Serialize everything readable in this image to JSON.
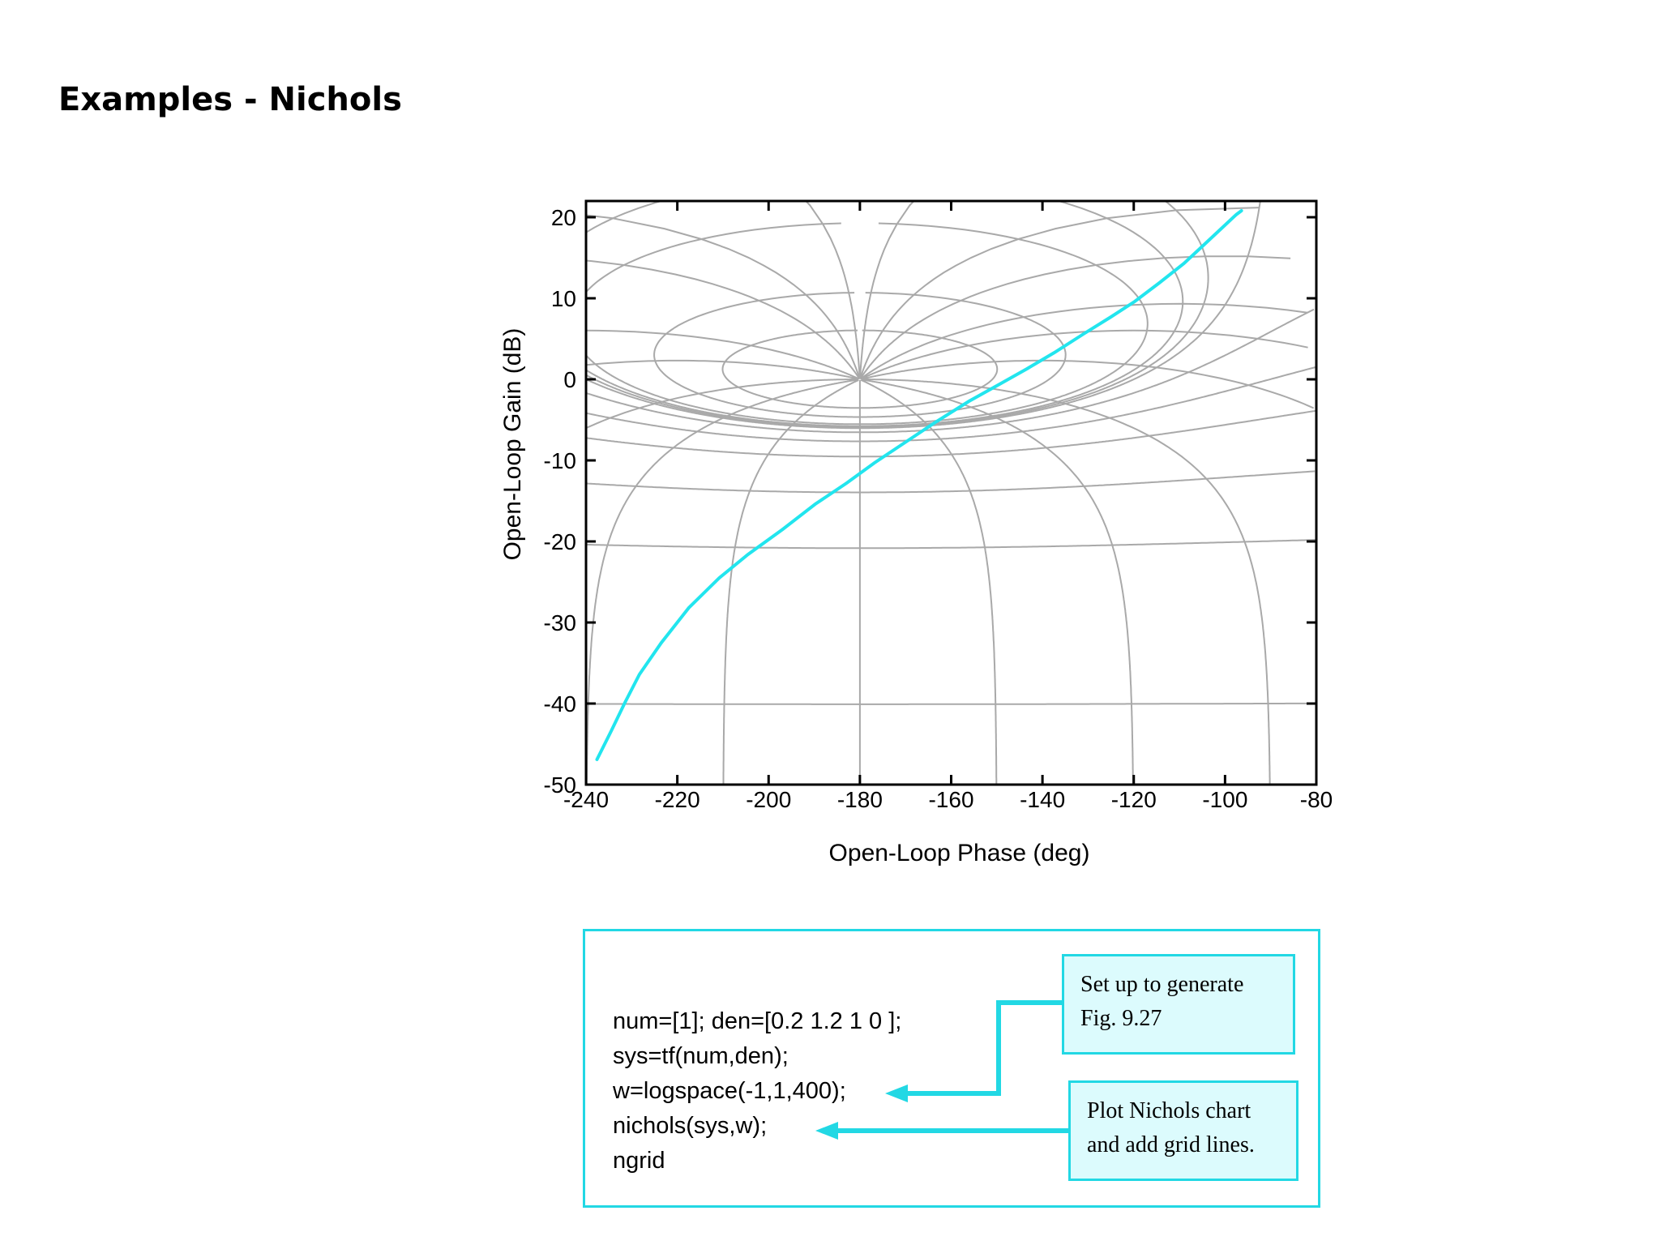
{
  "slide": {
    "title": "Examples - Nichols"
  },
  "chart_data": {
    "type": "line",
    "title": "",
    "xlabel": "Open-Loop Phase (deg)",
    "ylabel": "Open-Loop Gain (dB)",
    "xlim": [
      -240,
      -80
    ],
    "ylim": [
      -50,
      22
    ],
    "xticks": [
      -240,
      -220,
      -200,
      -180,
      -160,
      -140,
      -120,
      -100,
      -80
    ],
    "yticks": [
      -50,
      -40,
      -30,
      -20,
      -10,
      0,
      10,
      20
    ],
    "xtick_labels": [
      "-240",
      "-220",
      "-200",
      "-180",
      "-160",
      "-140",
      "-120",
      "-100",
      "-80"
    ],
    "ytick_labels": [
      "-50",
      "-40",
      "-30",
      "-20",
      "-10",
      "0",
      "10",
      "20"
    ],
    "grid": "nichols",
    "series": [
      {
        "color": "#22e5ee",
        "x": [
          -237.6,
          -234.5,
          -231.5,
          -228.3,
          -223.5,
          -217.5,
          -210.8,
          -204.5,
          -196.9,
          -189.8,
          -182.9,
          -176.8,
          -170.4,
          -163.2,
          -156.1,
          -149.4,
          -143.4,
          -137.4,
          -131.0,
          -125.0,
          -119.8,
          -114.4,
          -109.0,
          -104.8,
          -101.0,
          -97.6,
          -96.4
        ],
        "y": [
          -46.9,
          -43.4,
          -39.9,
          -36.4,
          -32.5,
          -28.2,
          -24.5,
          -21.6,
          -18.5,
          -15.4,
          -12.8,
          -10.3,
          -7.9,
          -5.2,
          -2.7,
          -0.6,
          1.3,
          3.3,
          5.6,
          7.7,
          9.6,
          11.9,
          14.3,
          16.5,
          18.5,
          20.3,
          20.8
        ]
      }
    ]
  },
  "code_panel": {
    "lines": [
      "num=[1]; den=[0.2 1.2 1 0 ];",
      "sys=tf(num,den);",
      "w=logspace(-1,1,400);",
      "nichols(sys,w);",
      "ngrid"
    ],
    "note_setup": [
      "Set up to generate",
      "Fig. 9.27"
    ],
    "note_plot": [
      "Plot Nichols chart",
      "and add grid lines."
    ],
    "accent_color": "#22d8e4",
    "note_fill": "#dcfbfd"
  }
}
